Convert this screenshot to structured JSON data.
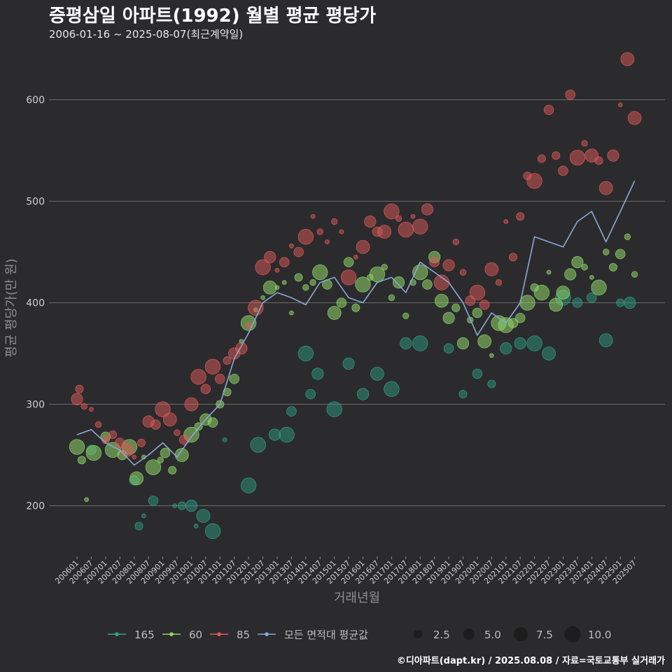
{
  "title": "증평삼일 아파트(1992) 월별 평균 평당가",
  "subtitle": "2006-01-16 ~ 2025-08-07(최근계약일)",
  "caption": "©디아파트(dapt.kr) / 2025.08.08 / 자료=국토교통부 실거래가",
  "colors": {
    "background": "#2b2b2d",
    "grid": "#6b6b6b",
    "s165": "#2fa58a",
    "s60": "#8fd66a",
    "s85": "#e05a5a",
    "avg": "#8aa8d6"
  },
  "chart_data": {
    "type": "scatter",
    "xlabel": "거래년월",
    "ylabel": "평균 평당가(만 원)",
    "ylim": [
      150,
      650
    ],
    "yticks": [
      200,
      300,
      400,
      500,
      600
    ],
    "xticks": [
      "200601",
      "200607",
      "200701",
      "200707",
      "200801",
      "200807",
      "200901",
      "200907",
      "201001",
      "201007",
      "201101",
      "201107",
      "201201",
      "201207",
      "201301",
      "201307",
      "201401",
      "201407",
      "201501",
      "201507",
      "201601",
      "201607",
      "201701",
      "201707",
      "201801",
      "201807",
      "201901",
      "201907",
      "202001",
      "202007",
      "202101",
      "202107",
      "202201",
      "202207",
      "202301",
      "202307",
      "202401",
      "202407",
      "202501",
      "202507"
    ],
    "legend_series": [
      {
        "name": "165",
        "color_key": "s165"
      },
      {
        "name": "60",
        "color_key": "s60"
      },
      {
        "name": "85",
        "color_key": "s85"
      },
      {
        "name": "모든 면적대 평균값",
        "color_key": "avg"
      }
    ],
    "legend_sizes": [
      "2.5",
      "5.0",
      "7.5",
      "10.0"
    ],
    "avg_line": {
      "name": "모든 면적대 평균값",
      "x": [
        "2006-01",
        "2006-07",
        "2007-01",
        "2007-07",
        "2008-01",
        "2008-07",
        "2009-01",
        "2009-07",
        "2010-01",
        "2010-07",
        "2011-01",
        "2011-07",
        "2012-01",
        "2012-07",
        "2013-01",
        "2013-07",
        "2014-01",
        "2014-07",
        "2015-01",
        "2015-07",
        "2016-01",
        "2016-07",
        "2017-01",
        "2017-07",
        "2018-01",
        "2018-07",
        "2019-01",
        "2019-07",
        "2020-01",
        "2020-07",
        "2021-01",
        "2021-07",
        "2022-01",
        "2022-07",
        "2023-01",
        "2023-07",
        "2024-01",
        "2024-07",
        "2025-01",
        "2025-07"
      ],
      "values": [
        270,
        275,
        262,
        255,
        240,
        250,
        262,
        248,
        268,
        285,
        300,
        345,
        370,
        400,
        410,
        405,
        398,
        420,
        425,
        405,
        400,
        420,
        425,
        410,
        440,
        430,
        420,
        400,
        368,
        390,
        380,
        400,
        465,
        460,
        455,
        480,
        490,
        460,
        490,
        520
      ]
    },
    "scatter": {
      "s165": [
        [
          "2006-07",
          255
        ],
        [
          "2008-01",
          225
        ],
        [
          "2008-03",
          180
        ],
        [
          "2008-05",
          190
        ],
        [
          "2008-09",
          205
        ],
        [
          "2009-06",
          200
        ],
        [
          "2009-09",
          200
        ],
        [
          "2010-01",
          200
        ],
        [
          "2010-03",
          180
        ],
        [
          "2010-06",
          190
        ],
        [
          "2010-10",
          175
        ],
        [
          "2011-03",
          265
        ],
        [
          "2012-01",
          220
        ],
        [
          "2012-05",
          260
        ],
        [
          "2012-12",
          270
        ],
        [
          "2013-05",
          270
        ],
        [
          "2013-07",
          293
        ],
        [
          "2014-01",
          350
        ],
        [
          "2014-03",
          310
        ],
        [
          "2014-06",
          330
        ],
        [
          "2015-01",
          295
        ],
        [
          "2015-07",
          340
        ],
        [
          "2016-01",
          310
        ],
        [
          "2016-07",
          330
        ],
        [
          "2017-01",
          315
        ],
        [
          "2017-07",
          360
        ],
        [
          "2018-01",
          360
        ],
        [
          "2019-01",
          355
        ],
        [
          "2019-07",
          310
        ],
        [
          "2020-01",
          330
        ],
        [
          "2020-07",
          320
        ],
        [
          "2021-01",
          355
        ],
        [
          "2021-07",
          360
        ],
        [
          "2022-01",
          360
        ],
        [
          "2022-07",
          350
        ],
        [
          "2023-01",
          405
        ],
        [
          "2023-07",
          400
        ],
        [
          "2024-01",
          405
        ],
        [
          "2024-07",
          363
        ],
        [
          "2025-01",
          400
        ],
        [
          "2025-05",
          400
        ]
      ],
      "s60": [
        [
          "2006-01",
          258
        ],
        [
          "2006-03",
          245
        ],
        [
          "2006-05",
          206
        ],
        [
          "2006-08",
          252
        ],
        [
          "2007-01",
          268
        ],
        [
          "2007-04",
          255
        ],
        [
          "2007-08",
          250
        ],
        [
          "2007-11",
          258
        ],
        [
          "2008-02",
          227
        ],
        [
          "2008-05",
          248
        ],
        [
          "2008-09",
          238
        ],
        [
          "2008-12",
          245
        ],
        [
          "2009-02",
          252
        ],
        [
          "2009-05",
          235
        ],
        [
          "2009-09",
          250
        ],
        [
          "2010-01",
          270
        ],
        [
          "2010-04",
          278
        ],
        [
          "2010-07",
          285
        ],
        [
          "2010-10",
          282
        ],
        [
          "2011-01",
          300
        ],
        [
          "2011-04",
          312
        ],
        [
          "2011-07",
          325
        ],
        [
          "2011-10",
          362
        ],
        [
          "2012-01",
          380
        ],
        [
          "2012-04",
          393
        ],
        [
          "2012-07",
          405
        ],
        [
          "2012-10",
          415
        ],
        [
          "2013-01",
          415
        ],
        [
          "2013-04",
          420
        ],
        [
          "2013-07",
          390
        ],
        [
          "2013-10",
          425
        ],
        [
          "2014-01",
          415
        ],
        [
          "2014-04",
          420
        ],
        [
          "2014-07",
          430
        ],
        [
          "2014-10",
          418
        ],
        [
          "2015-01",
          390
        ],
        [
          "2015-04",
          400
        ],
        [
          "2015-07",
          440
        ],
        [
          "2015-10",
          395
        ],
        [
          "2016-01",
          418
        ],
        [
          "2016-04",
          425
        ],
        [
          "2016-07",
          428
        ],
        [
          "2016-10",
          435
        ],
        [
          "2017-01",
          405
        ],
        [
          "2017-04",
          420
        ],
        [
          "2017-07",
          387
        ],
        [
          "2017-10",
          420
        ],
        [
          "2018-01",
          430
        ],
        [
          "2018-04",
          418
        ],
        [
          "2018-07",
          445
        ],
        [
          "2018-10",
          402
        ],
        [
          "2019-01",
          385
        ],
        [
          "2019-04",
          395
        ],
        [
          "2019-07",
          360
        ],
        [
          "2019-10",
          383
        ],
        [
          "2020-01",
          390
        ],
        [
          "2020-04",
          362
        ],
        [
          "2020-07",
          348
        ],
        [
          "2020-10",
          380
        ],
        [
          "2021-01",
          378
        ],
        [
          "2021-04",
          380
        ],
        [
          "2021-07",
          385
        ],
        [
          "2021-10",
          400
        ],
        [
          "2022-01",
          415
        ],
        [
          "2022-04",
          410
        ],
        [
          "2022-07",
          430
        ],
        [
          "2022-10",
          398
        ],
        [
          "2023-01",
          410
        ],
        [
          "2023-04",
          428
        ],
        [
          "2023-07",
          440
        ],
        [
          "2023-10",
          435
        ],
        [
          "2024-01",
          425
        ],
        [
          "2024-04",
          415
        ],
        [
          "2024-07",
          450
        ],
        [
          "2024-10",
          435
        ],
        [
          "2025-01",
          448
        ],
        [
          "2025-04",
          465
        ],
        [
          "2025-07",
          428
        ]
      ],
      "s85": [
        [
          "2006-01",
          305
        ],
        [
          "2006-02",
          315
        ],
        [
          "2006-04",
          298
        ],
        [
          "2006-07",
          295
        ],
        [
          "2006-10",
          280
        ],
        [
          "2007-01",
          265
        ],
        [
          "2007-04",
          270
        ],
        [
          "2007-07",
          262
        ],
        [
          "2007-10",
          255
        ],
        [
          "2008-01",
          248
        ],
        [
          "2008-04",
          262
        ],
        [
          "2008-07",
          283
        ],
        [
          "2008-10",
          280
        ],
        [
          "2009-01",
          295
        ],
        [
          "2009-04",
          285
        ],
        [
          "2009-07",
          272
        ],
        [
          "2009-10",
          265
        ],
        [
          "2010-01",
          300
        ],
        [
          "2010-04",
          327
        ],
        [
          "2010-07",
          315
        ],
        [
          "2010-10",
          337
        ],
        [
          "2011-01",
          325
        ],
        [
          "2011-04",
          343
        ],
        [
          "2011-07",
          350
        ],
        [
          "2011-10",
          355
        ],
        [
          "2012-01",
          378
        ],
        [
          "2012-04",
          395
        ],
        [
          "2012-07",
          435
        ],
        [
          "2012-10",
          445
        ],
        [
          "2013-01",
          432
        ],
        [
          "2013-04",
          440
        ],
        [
          "2013-07",
          456
        ],
        [
          "2013-10",
          450
        ],
        [
          "2014-01",
          465
        ],
        [
          "2014-04",
          485
        ],
        [
          "2014-07",
          470
        ],
        [
          "2014-10",
          460
        ],
        [
          "2015-01",
          480
        ],
        [
          "2015-04",
          470
        ],
        [
          "2015-07",
          425
        ],
        [
          "2015-10",
          445
        ],
        [
          "2016-01",
          455
        ],
        [
          "2016-04",
          480
        ],
        [
          "2016-07",
          470
        ],
        [
          "2016-10",
          470
        ],
        [
          "2017-01",
          490
        ],
        [
          "2017-04",
          483
        ],
        [
          "2017-07",
          472
        ],
        [
          "2017-10",
          485
        ],
        [
          "2018-01",
          475
        ],
        [
          "2018-04",
          492
        ],
        [
          "2018-07",
          440
        ],
        [
          "2018-10",
          420
        ],
        [
          "2019-01",
          437
        ],
        [
          "2019-04",
          460
        ],
        [
          "2019-07",
          430
        ],
        [
          "2019-10",
          402
        ],
        [
          "2020-01",
          410
        ],
        [
          "2020-04",
          398
        ],
        [
          "2020-07",
          433
        ],
        [
          "2020-10",
          420
        ],
        [
          "2021-01",
          480
        ],
        [
          "2021-04",
          445
        ],
        [
          "2021-07",
          485
        ],
        [
          "2021-10",
          525
        ],
        [
          "2022-01",
          520
        ],
        [
          "2022-04",
          542
        ],
        [
          "2022-07",
          590
        ],
        [
          "2022-10",
          545
        ],
        [
          "2023-01",
          530
        ],
        [
          "2023-04",
          605
        ],
        [
          "2023-07",
          543
        ],
        [
          "2023-10",
          557
        ],
        [
          "2024-01",
          545
        ],
        [
          "2024-04",
          540
        ],
        [
          "2024-07",
          513
        ],
        [
          "2024-10",
          545
        ],
        [
          "2025-01",
          595
        ],
        [
          "2025-04",
          640
        ],
        [
          "2025-07",
          582
        ]
      ]
    }
  }
}
